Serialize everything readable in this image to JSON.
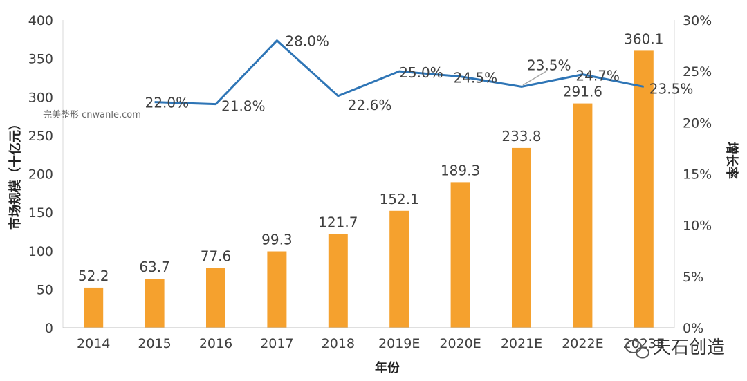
{
  "chart_data": {
    "type": "bar+line",
    "categories": [
      "2014",
      "2015",
      "2016",
      "2017",
      "2018",
      "2019E",
      "2020E",
      "2021E",
      "2022E",
      "2023E"
    ],
    "series": [
      {
        "type": "bar",
        "axis": "left",
        "values": [
          52.2,
          63.7,
          77.6,
          99.3,
          121.7,
          152.1,
          189.3,
          233.8,
          291.6,
          360.1
        ],
        "labels": [
          "52.2",
          "63.7",
          "77.6",
          "99.3",
          "121.7",
          "152.1",
          "189.3",
          "233.8",
          "291.6",
          "360.1"
        ],
        "color": "#F5A12E"
      },
      {
        "type": "line",
        "axis": "right",
        "values": [
          null,
          22.0,
          21.8,
          28.0,
          22.6,
          25.0,
          24.5,
          23.5,
          24.7,
          23.5
        ],
        "labels": [
          null,
          "22.0%",
          "21.8%",
          "28.0%",
          "22.6%",
          "25.0%",
          "24.5%",
          "23.5%",
          "24.7%",
          "23.5%"
        ],
        "color": "#2E75B6"
      }
    ],
    "xlabel": "年份",
    "ylabel": "市场规模（十亿元）",
    "y2label": "增长率",
    "ylim": [
      0,
      400
    ],
    "yticks": [
      "0",
      "50",
      "100",
      "150",
      "200",
      "250",
      "300",
      "350",
      "400"
    ],
    "y2lim": [
      0,
      30
    ],
    "y2ticks": [
      "0%",
      "5%",
      "10%",
      "15%",
      "20%",
      "25%",
      "30%"
    ],
    "grid": false,
    "legend": "none"
  },
  "watermark": "完美整形 cnwanle.com",
  "brand": "天石创造"
}
